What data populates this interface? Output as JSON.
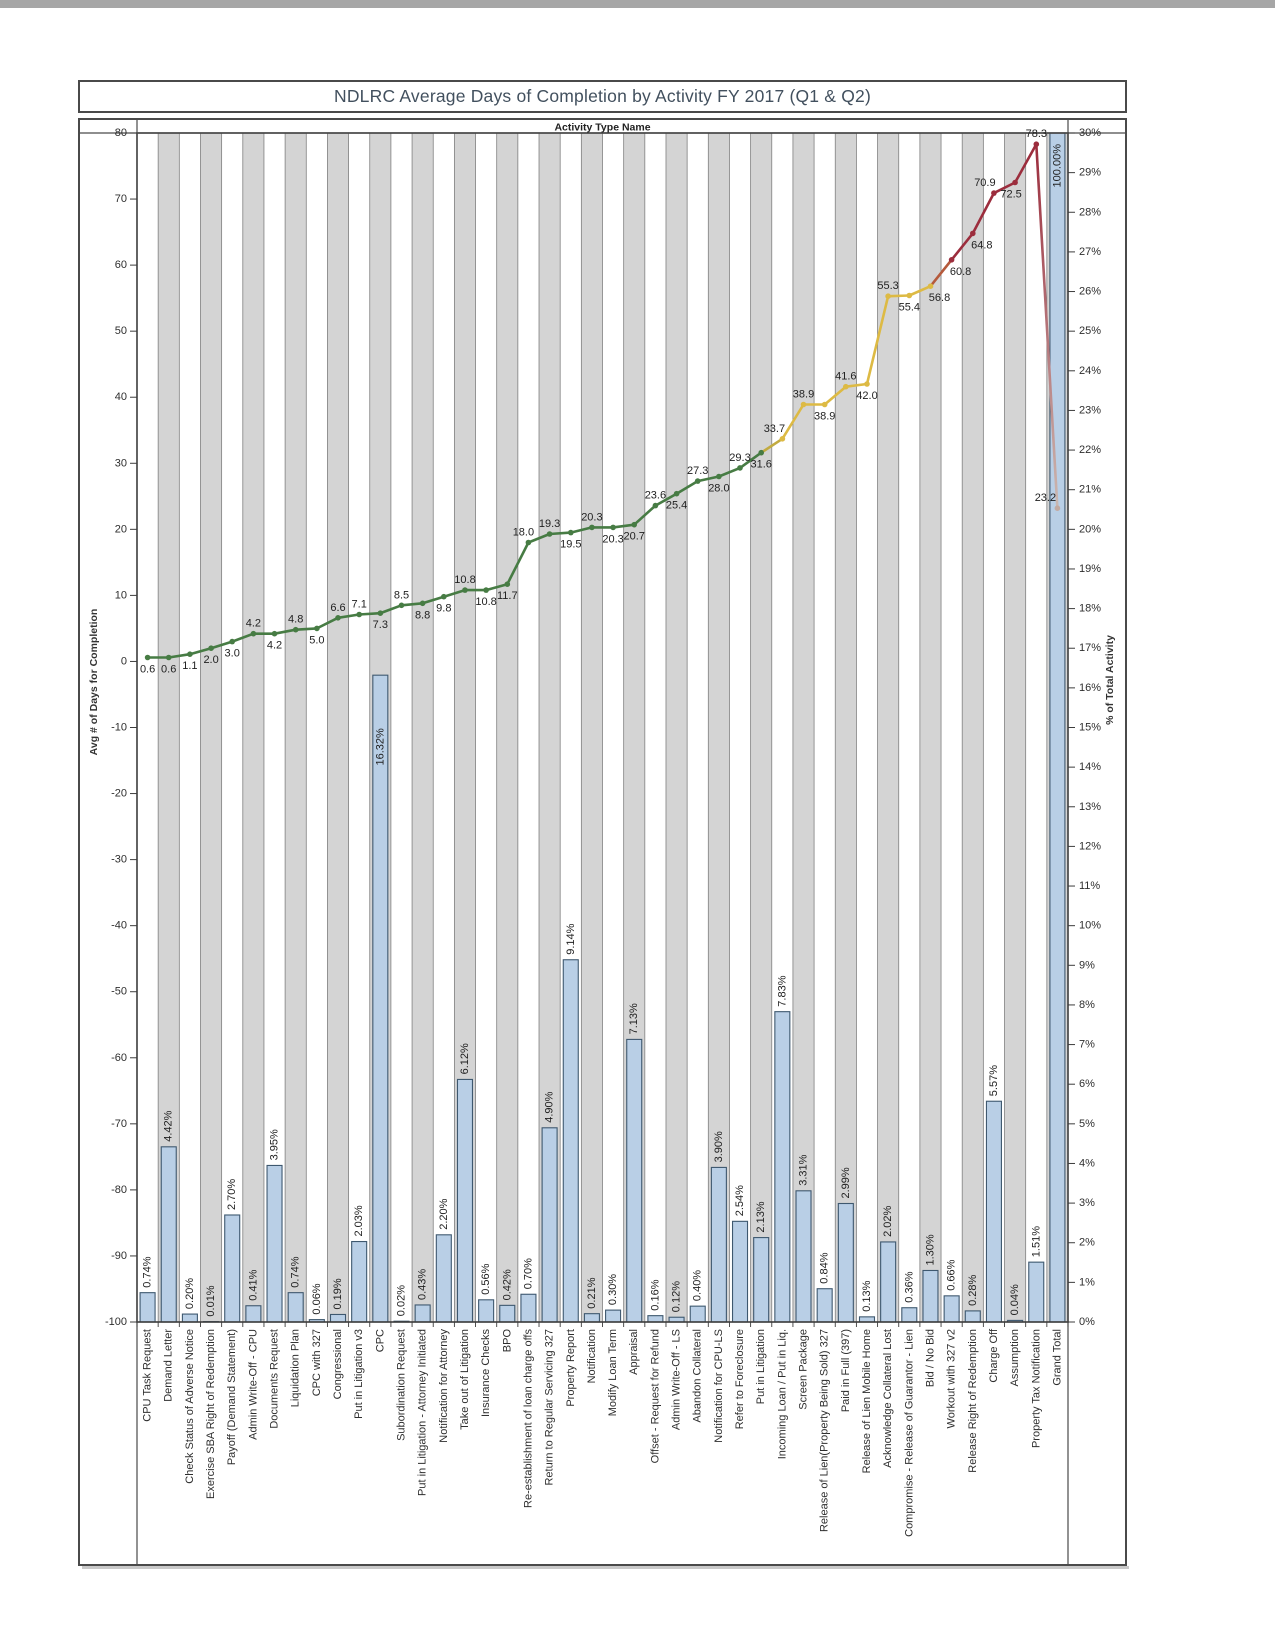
{
  "page": {
    "title": "NDLRC Average Days of Completion by Activity FY 2017 (Q1 & Q2)"
  },
  "chart_data": {
    "type": "bar+line",
    "title": "NDLRC Average Days of Completion by Activity FY 2017 (Q1 & Q2)",
    "x_header": "Activity Type Name",
    "left_axis": {
      "label": "Avg # of Days for Completion",
      "range": [
        -100,
        80
      ],
      "tick_step": 10
    },
    "right_axis": {
      "label": "% of Total Activity",
      "range": [
        0,
        30
      ],
      "tick_step": 1,
      "suffix": "%"
    },
    "legend": "none",
    "grid": "vertical-alternating-bands",
    "categories": [
      "CPU Task Request",
      "Demand Letter",
      "Check Status of Adverse Notice",
      "Exercise SBA Right of Redemption",
      "Payoff (Demand Statement)",
      "Admin Write-Off - CPU",
      "Documents Request",
      "Liquidation Plan",
      "CPC with 327",
      "Congressional",
      "Put in Litigation v3",
      "CPC",
      "Subordination Request",
      "Put in Litigation - Attorney Initiated",
      "Notification for Attorney",
      "Take out of Litigation",
      "Insurance Checks",
      "BPO",
      "Re-establishment of loan charge offs",
      "Return to Regular Servicing 327",
      "Property Report",
      "Notification",
      "Modify Loan Term",
      "Appraisal",
      "Offset - Request for Refund",
      "Admin Write-Off - LS",
      "Abandon Collateral",
      "Notification for CPU-LS",
      "Refer to Foreclosure",
      "Put in Litigation",
      "Incoming Loan / Put in Liq.",
      "Screen Package",
      "Release of Lien(Property Being Sold) 327",
      "Paid in Full (397)",
      "Release of Lien Mobile Home",
      "Acknowledge Collateral Lost",
      "Compromise - Release of Guarantor - Lien",
      "Bid / No Bid",
      "Workout with 327 v2",
      "Release Right of Redemption",
      "Charge Off",
      "Assumption",
      "Property Tax Notification",
      "Grand Total"
    ],
    "series": [
      {
        "name": "% of Total Activity",
        "type": "bar",
        "axis": "right",
        "values": [
          0.74,
          4.42,
          0.2,
          0.01,
          2.7,
          0.41,
          3.95,
          0.74,
          0.06,
          0.19,
          2.03,
          16.32,
          0.02,
          0.43,
          2.2,
          6.12,
          0.56,
          0.42,
          0.7,
          4.9,
          9.14,
          0.21,
          0.3,
          7.13,
          0.16,
          0.12,
          0.4,
          3.9,
          2.54,
          2.13,
          7.83,
          3.31,
          0.84,
          2.99,
          0.13,
          2.02,
          0.36,
          1.3,
          0.66,
          0.28,
          5.57,
          0.04,
          1.51,
          100.0
        ]
      },
      {
        "name": "Avg # of Days for Completion",
        "type": "line",
        "axis": "left",
        "values": [
          0.6,
          0.6,
          1.1,
          2.0,
          3.0,
          4.2,
          4.2,
          4.8,
          5.0,
          6.6,
          7.1,
          7.3,
          8.5,
          8.8,
          9.8,
          10.8,
          10.8,
          11.7,
          18.0,
          19.3,
          19.5,
          20.3,
          20.3,
          20.7,
          23.6,
          25.4,
          27.3,
          28.0,
          29.3,
          31.6,
          33.7,
          38.9,
          38.9,
          41.6,
          42.0,
          55.3,
          55.4,
          56.8,
          60.8,
          64.8,
          70.9,
          72.5,
          78.3,
          23.2
        ]
      }
    ],
    "style": {
      "bar_fill": "#b9cfe6",
      "bar_stroke": "#3e586f",
      "band_fill": "#d4d4d4",
      "band_line": "#808080",
      "plot_border": "#3c3c3c",
      "text": "#2e2e2e",
      "label_text": "#1f1f1f",
      "title_color": "#42505e",
      "line_green": "#477c44",
      "line_green_gold": "#c2ab41",
      "line_gold": "#ddba44",
      "line_transition": "#b55a3c",
      "line_red": "#9c2d3d",
      "line_fade_to": "#cbb8b1",
      "pale_point": "#c2aaa2",
      "line_label_pos": [
        "b",
        "b",
        "b",
        "b",
        "b",
        "a",
        "b",
        "a",
        "b",
        "a",
        "a",
        "b",
        "a",
        "b",
        "b",
        "a",
        "b",
        "b",
        "a",
        "a",
        "b",
        "a",
        "b",
        "b",
        "a",
        "b",
        "a",
        "b",
        "a",
        "b",
        "a",
        "a",
        "b",
        "a",
        "b",
        "a",
        "b",
        "b",
        "b",
        "b",
        "a",
        "b",
        "a",
        "a"
      ],
      "line_label_dx": {
        "18": -5,
        "30": -8,
        "37": 9,
        "38": 9,
        "39": 9,
        "40": -9,
        "41": -4,
        "43": -12
      },
      "inside_bar_labels": {
        "11": 53,
        "43": 11
      }
    }
  }
}
